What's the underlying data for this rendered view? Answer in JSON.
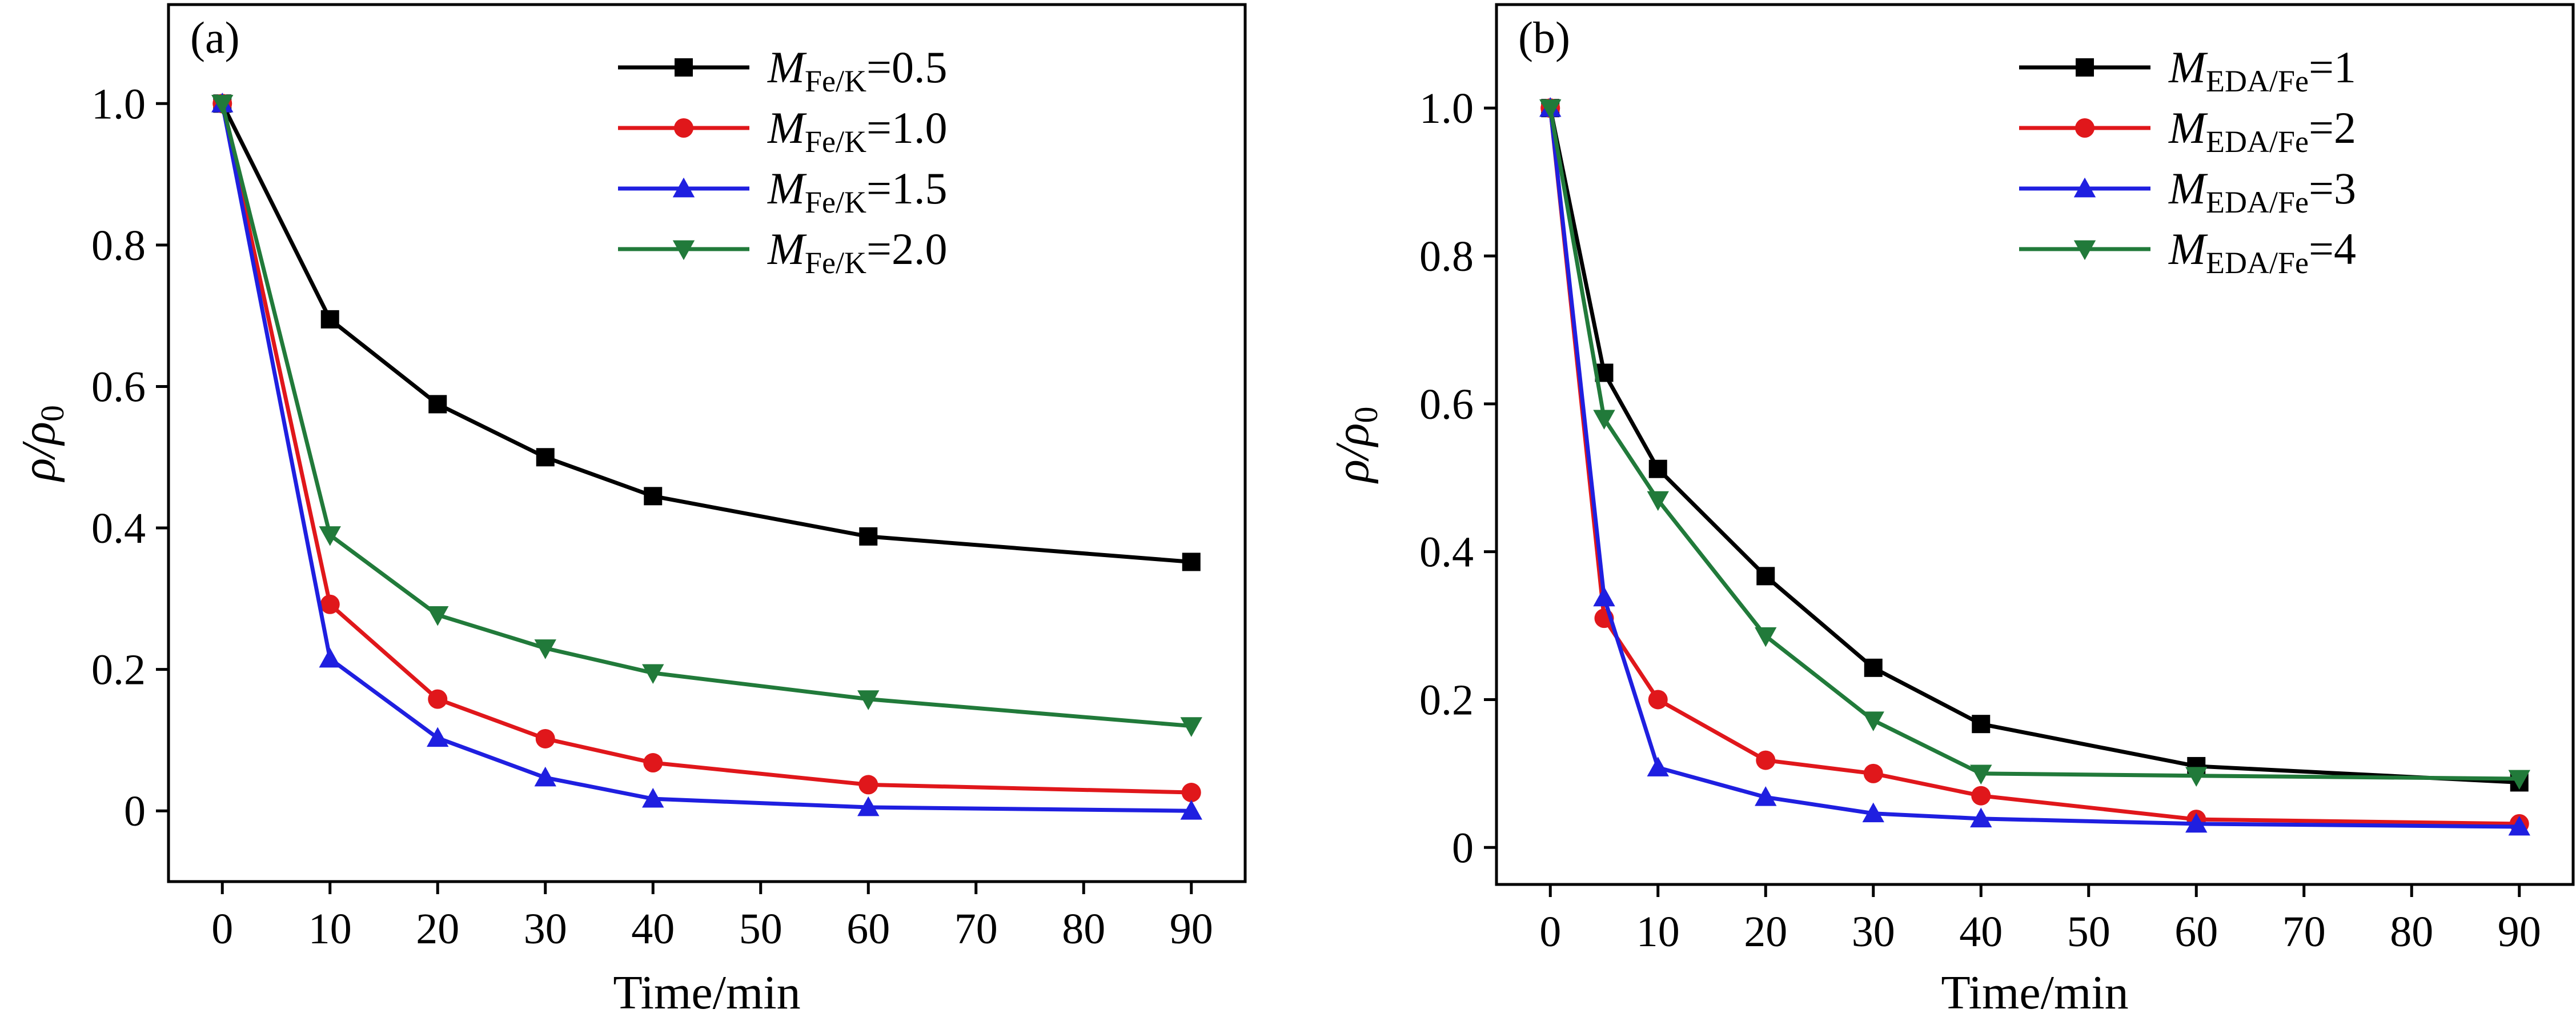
{
  "chart_data": [
    {
      "type": "line",
      "panel_label": "(a)",
      "xlabel": "Time/min",
      "ylabel": {
        "main": "ρ/ρ",
        "sub": "0"
      },
      "xlim": [
        -5,
        95
      ],
      "ylim": [
        -0.1,
        1.14
      ],
      "xticks": [
        0,
        10,
        20,
        30,
        40,
        50,
        60,
        70,
        80,
        90
      ],
      "xtick_labels": [
        "0",
        "10",
        "20",
        "30",
        "40",
        "50",
        "60",
        "70",
        "80",
        "90"
      ],
      "yticks": [
        0,
        0.2,
        0.4,
        0.6,
        0.8,
        1.0
      ],
      "ytick_labels": [
        "0",
        "0.2",
        "0.4",
        "0.6",
        "0.8",
        "1.0"
      ],
      "legend_position": "top-right",
      "x": [
        0,
        10,
        20,
        30,
        40,
        60,
        90
      ],
      "series": [
        {
          "name": "M_Fe/K=0.5",
          "label_var": "M",
          "label_sub": "Fe/K",
          "label_val": "=0.5",
          "color": "#000000",
          "marker": "square",
          "values": [
            1.0,
            0.695,
            0.575,
            0.5,
            0.445,
            0.388,
            0.352
          ]
        },
        {
          "name": "M_Fe/K=1.0",
          "label_var": "M",
          "label_sub": "Fe/K",
          "label_val": "=1.0",
          "color": "#e0171b",
          "marker": "circle",
          "values": [
            1.0,
            0.292,
            0.158,
            0.102,
            0.068,
            0.037,
            0.026
          ]
        },
        {
          "name": "M_Fe/K=1.5",
          "label_var": "M",
          "label_sub": "Fe/K",
          "label_val": "=1.5",
          "color": "#1f1fe0",
          "marker": "triangle-up",
          "values": [
            1.0,
            0.215,
            0.103,
            0.047,
            0.017,
            0.005,
            0.0
          ]
        },
        {
          "name": "M_Fe/K=2.0",
          "label_var": "M",
          "label_sub": "Fe/K",
          "label_val": "=2.0",
          "color": "#217a3a",
          "marker": "triangle-down",
          "values": [
            1.0,
            0.39,
            0.277,
            0.23,
            0.195,
            0.158,
            0.12
          ]
        }
      ]
    },
    {
      "type": "line",
      "panel_label": "(b)",
      "xlabel": "Time/min",
      "ylabel": {
        "main": "ρ/ρ",
        "sub": "0"
      },
      "xlim": [
        -5,
        95
      ],
      "ylim": [
        -0.05,
        1.14
      ],
      "xticks": [
        0,
        10,
        20,
        30,
        40,
        50,
        60,
        70,
        80,
        90
      ],
      "xtick_labels": [
        "0",
        "10",
        "20",
        "30",
        "40",
        "50",
        "60",
        "70",
        "80",
        "90"
      ],
      "yticks": [
        0,
        0.2,
        0.4,
        0.6,
        0.8,
        1.0
      ],
      "ytick_labels": [
        "0",
        "0.2",
        "0.4",
        "0.6",
        "0.8",
        "1.0"
      ],
      "legend_position": "top-right",
      "x": [
        0,
        5,
        10,
        20,
        30,
        40,
        60,
        90
      ],
      "series": [
        {
          "name": "M_EDA/Fe=1",
          "label_var": "M",
          "label_sub": "EDA/Fe",
          "label_val": "=1",
          "color": "#000000",
          "marker": "square",
          "values": [
            1.0,
            0.642,
            0.512,
            0.367,
            0.243,
            0.167,
            0.11,
            0.088
          ]
        },
        {
          "name": "M_EDA/Fe=2",
          "label_var": "M",
          "label_sub": "EDA/Fe",
          "label_val": "=2",
          "color": "#e0171b",
          "marker": "circle",
          "values": [
            1.0,
            0.31,
            0.2,
            0.118,
            0.1,
            0.07,
            0.038,
            0.032
          ]
        },
        {
          "name": "M_EDA/Fe=3",
          "label_var": "M",
          "label_sub": "EDA/Fe",
          "label_val": "=3",
          "color": "#1f1fe0",
          "marker": "triangle-up",
          "values": [
            1.0,
            0.338,
            0.108,
            0.068,
            0.046,
            0.039,
            0.032,
            0.028
          ]
        },
        {
          "name": "M_EDA/Fe=4",
          "label_var": "M",
          "label_sub": "EDA/Fe",
          "label_val": "=4",
          "color": "#217a3a",
          "marker": "triangle-down",
          "values": [
            1.0,
            0.58,
            0.47,
            0.286,
            0.172,
            0.1,
            0.097,
            0.093
          ]
        }
      ]
    }
  ]
}
